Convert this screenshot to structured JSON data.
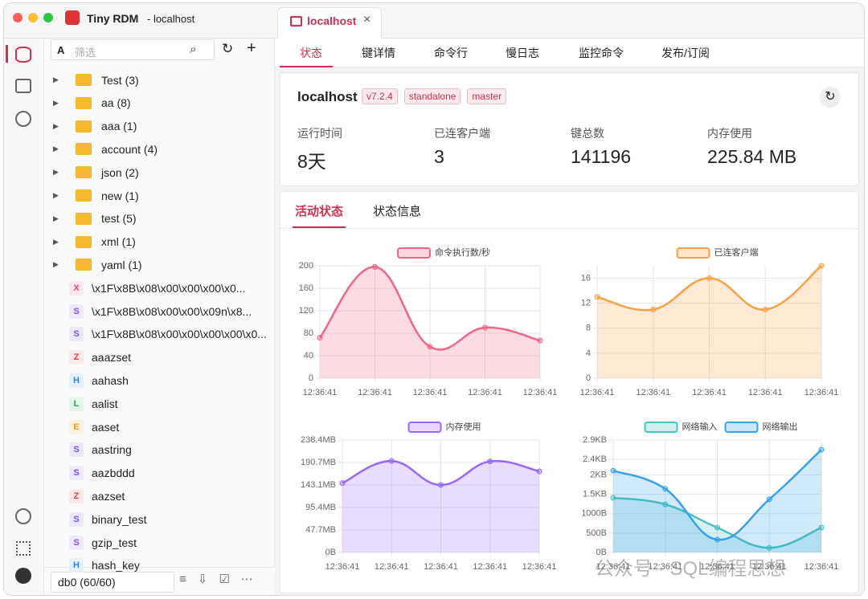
{
  "window": {
    "title": "Tiny RDM",
    "subtitle": "- localhost"
  },
  "tab": "localhost",
  "sidebar": {
    "filter_mode": "A",
    "filter_placeholder": "筛选",
    "folders": [
      "Test (3)",
      "aa (8)",
      "aaa (1)",
      "account (4)",
      "json (2)",
      "new (1)",
      "test (5)",
      "xml (1)",
      "yaml (1)"
    ],
    "keys": [
      {
        "type": "X",
        "name": "\\x1F\\x8B\\x08\\x00\\x00\\x00\\x0..."
      },
      {
        "type": "S",
        "name": "\\x1F\\x8B\\x08\\x00\\x00\\x09n\\x8..."
      },
      {
        "type": "S",
        "name": "\\x1F\\x8B\\x08\\x00\\x00\\x00\\x00\\x0..."
      },
      {
        "type": "Z",
        "name": "aaazset"
      },
      {
        "type": "H",
        "name": "aahash"
      },
      {
        "type": "L",
        "name": "aalist"
      },
      {
        "type": "E",
        "name": "aaset"
      },
      {
        "type": "S",
        "name": "aastring"
      },
      {
        "type": "S",
        "name": "aazbddd"
      },
      {
        "type": "Z",
        "name": "aazset"
      },
      {
        "type": "S",
        "name": "binary_test"
      },
      {
        "type": "S",
        "name": "gzip_test"
      },
      {
        "type": "H",
        "name": "hash_key"
      }
    ],
    "db": "db0 (60/60)"
  },
  "nav": [
    "状态",
    "键详情",
    "命令行",
    "慢日志",
    "监控命令",
    "发布/订阅"
  ],
  "server": {
    "name": "localhost",
    "tags": [
      "v7.2.4",
      "standalone",
      "master"
    ],
    "stats": [
      {
        "label": "运行时间",
        "value": "8天"
      },
      {
        "label": "已连客户端",
        "value": 3
      },
      {
        "label": "键总数",
        "value": 141196
      },
      {
        "label": "内存使用",
        "value": "225.84 MB"
      }
    ]
  },
  "subtabs": [
    "活动状态",
    "状态信息"
  ],
  "chart_data": [
    {
      "type": "line",
      "categories": [
        "12:36:41",
        "12:36:41",
        "12:36:41",
        "12:36:41",
        "12:36:41"
      ],
      "series": [
        {
          "name": "命令执行数/秒",
          "color": "#f06584",
          "values": [
            72,
            198,
            56,
            90,
            67
          ]
        }
      ],
      "ylim": [
        0,
        200
      ],
      "yticks": [
        0,
        40,
        80,
        120,
        160,
        200
      ],
      "grid": true
    },
    {
      "type": "line",
      "categories": [
        "12:36:41",
        "12:36:41",
        "12:36:41",
        "12:36:41",
        "12:36:41"
      ],
      "series": [
        {
          "name": "已连客户端",
          "color": "#f7a044",
          "values": [
            13,
            11,
            16,
            11,
            18
          ]
        }
      ],
      "ylim": [
        0,
        18
      ],
      "yticks": [
        0,
        4,
        8,
        12,
        16
      ],
      "grid": true
    },
    {
      "type": "line",
      "categories": [
        "12:36:41",
        "12:36:41",
        "12:36:41",
        "12:36:41",
        "12:36:41"
      ],
      "series": [
        {
          "name": "内存使用",
          "color": "#9966ff",
          "values": [
            147,
            194,
            143,
            193,
            172
          ]
        }
      ],
      "ylim": [
        0,
        238.4
      ],
      "yticks": [
        {
          "value": 0,
          "label": "0B"
        },
        {
          "value": 47.7,
          "label": "47.7MB"
        },
        {
          "value": 95.4,
          "label": "95.4MB"
        },
        {
          "value": 143.1,
          "label": "143.1MB"
        },
        {
          "value": 190.7,
          "label": "190.7MB"
        },
        {
          "value": 238.4,
          "label": "238.4MB"
        }
      ],
      "grid": true
    },
    {
      "type": "line",
      "categories": [
        "12:36:41",
        "12:36:41",
        "12:36:41",
        "12:36:41",
        "12:36:41"
      ],
      "series": [
        {
          "name": "网络输入",
          "color": "#4bc0c0",
          "values": [
            1410,
            1240,
            640,
            120,
            640
          ]
        },
        {
          "name": "网络输出",
          "color": "#36a2eb",
          "values": [
            2110,
            1640,
            330,
            1370,
            2650
          ]
        }
      ],
      "ylim": [
        0,
        2900
      ],
      "yticks": [
        {
          "value": 0,
          "label": "0B"
        },
        {
          "value": 500,
          "label": "500B"
        },
        {
          "value": 1000,
          "label": "1000B"
        },
        {
          "value": 1500,
          "label": "1.5KB"
        },
        {
          "value": 2000,
          "label": "2KB"
        },
        {
          "value": 2400,
          "label": "2.4KB"
        },
        {
          "value": 2900,
          "label": "2.9KB"
        }
      ],
      "grid": true
    }
  ],
  "watermark": "公众号 · SQL编程思想"
}
